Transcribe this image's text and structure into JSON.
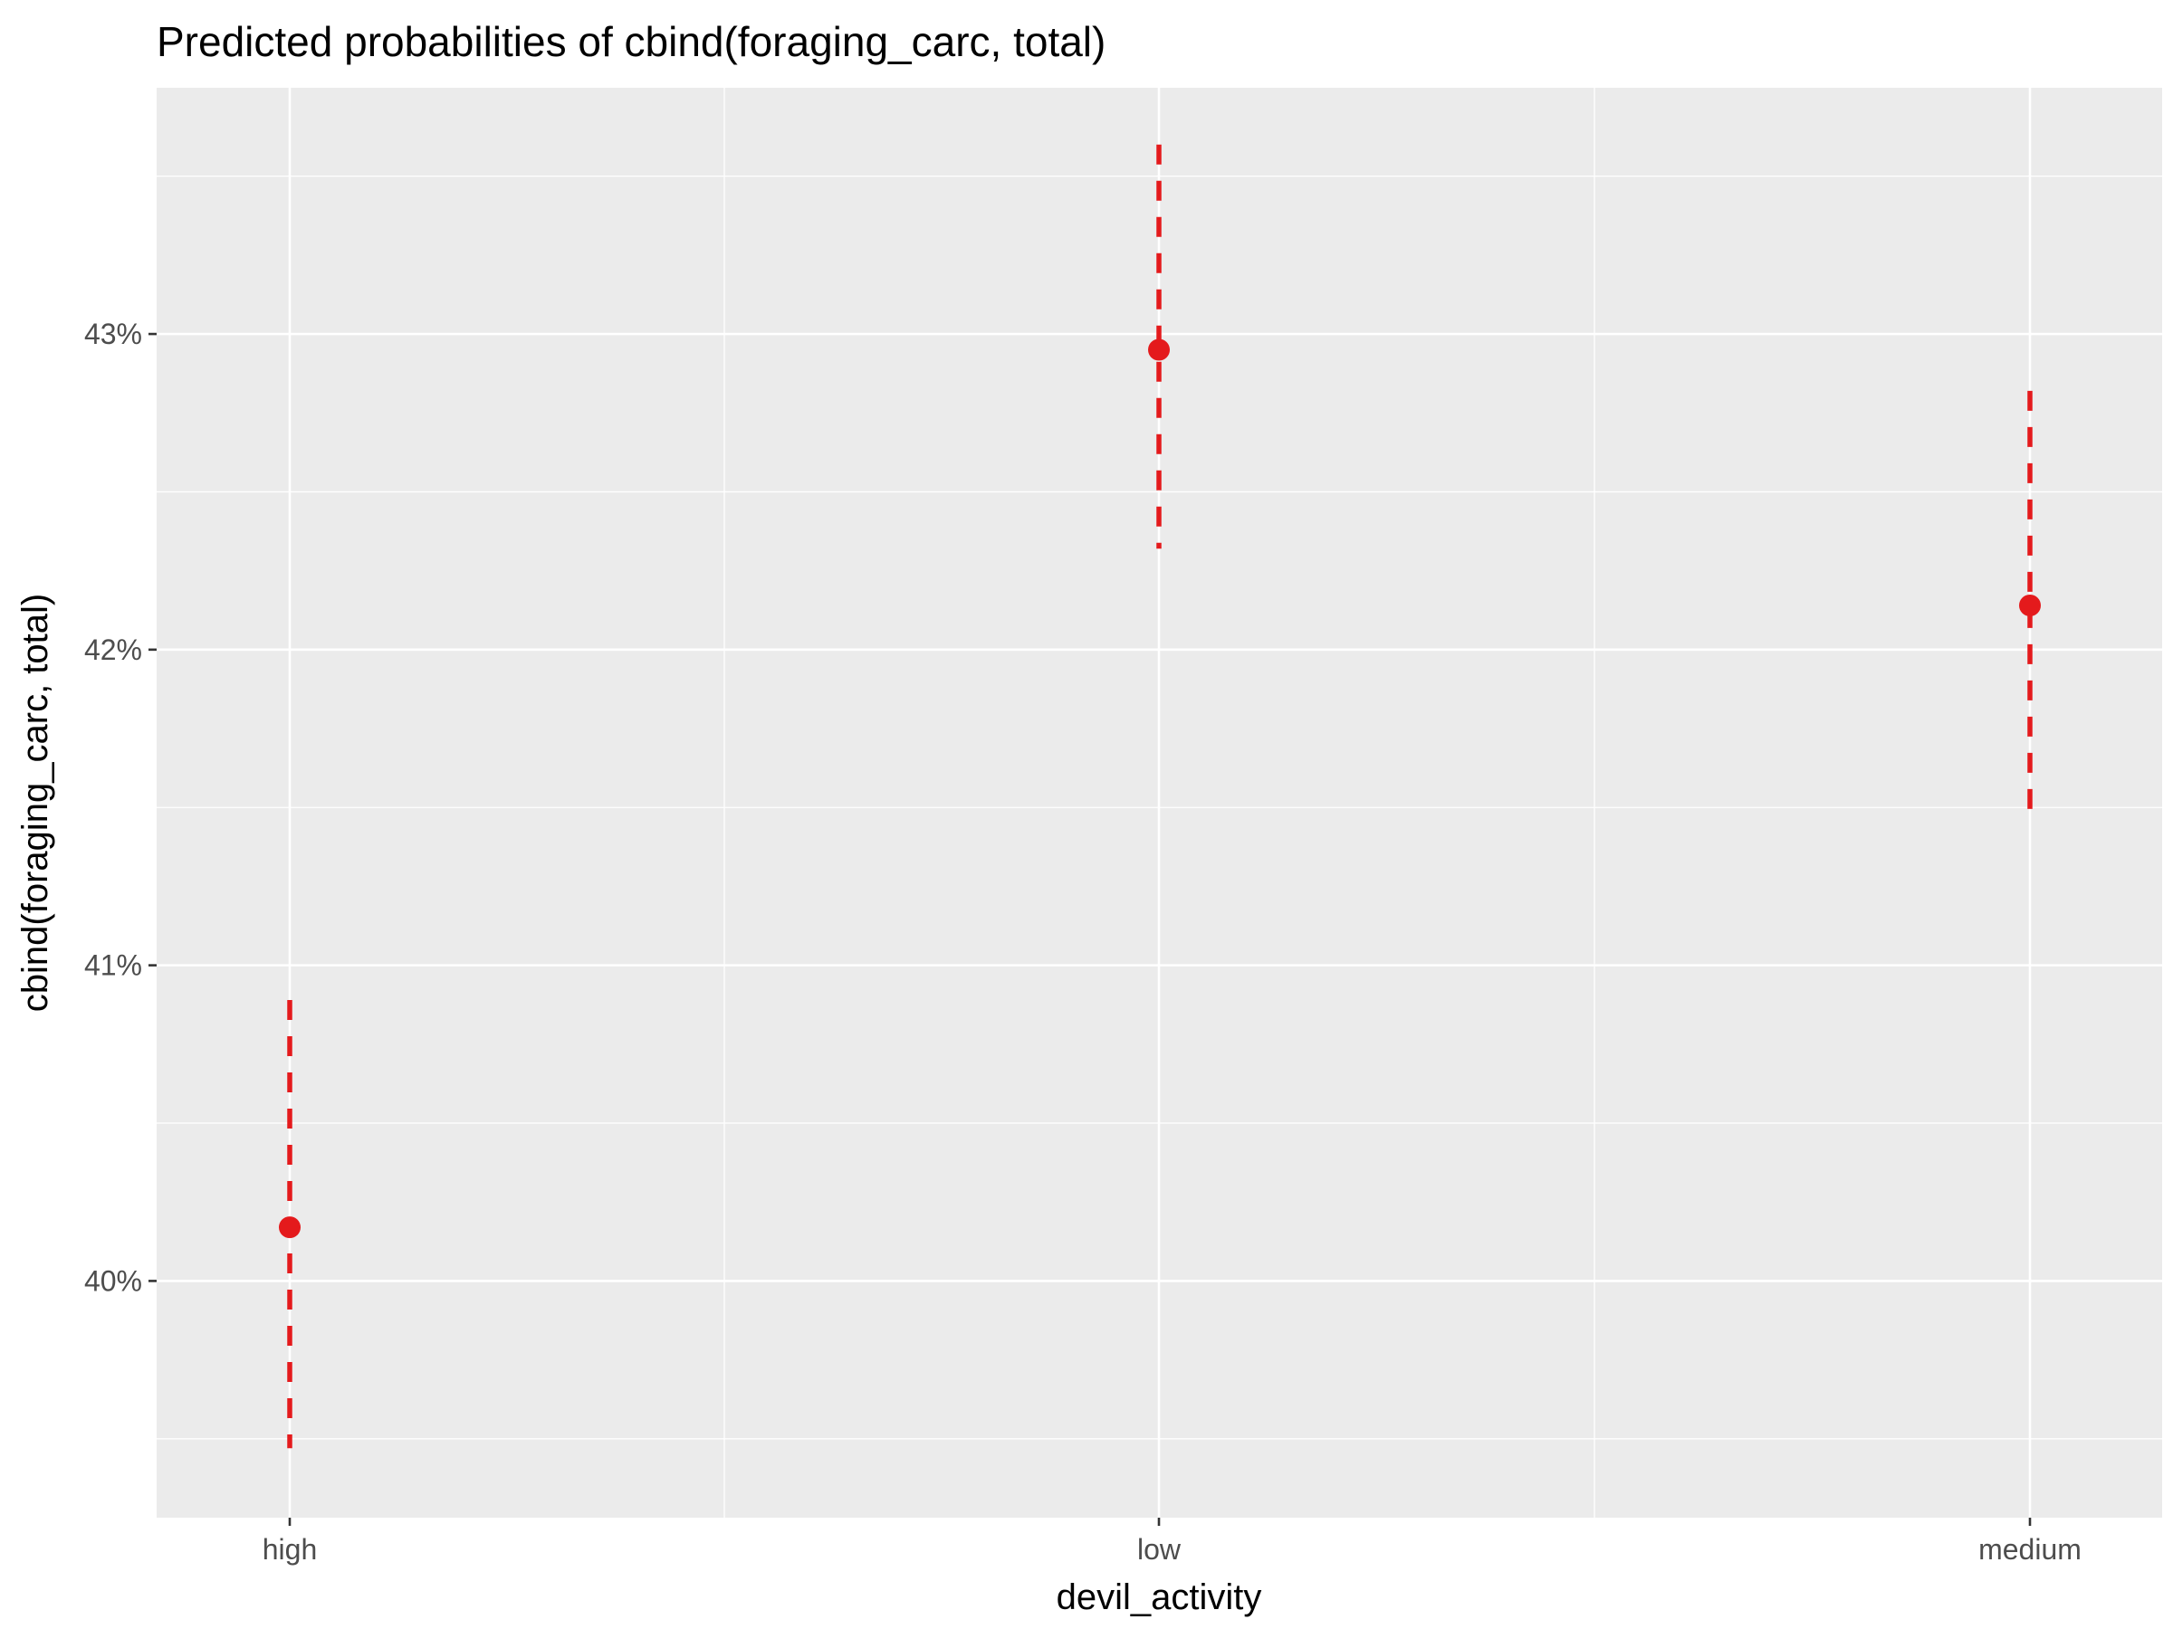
{
  "chart_data": {
    "type": "scatter",
    "title": "Predicted probabilities of cbind(foraging_carc, total)",
    "xlabel": "devil_activity",
    "ylabel": "cbind(foraging_carc, total)",
    "categories": [
      "high",
      "low",
      "medium"
    ],
    "series": [
      {
        "values": [
          40.17,
          42.95,
          42.14
        ],
        "ci_low": [
          39.47,
          42.32,
          41.49
        ],
        "ci_high": [
          40.89,
          43.6,
          42.82
        ]
      }
    ],
    "y_ticks": [
      40,
      41,
      42,
      43
    ],
    "y_tick_labels": [
      "40%",
      "41%",
      "42%",
      "43%"
    ],
    "ylim": [
      39.25,
      43.78
    ],
    "grid": true,
    "legend": "none",
    "colors": {
      "point": "#e41a1c",
      "panel": "#ebebeb",
      "grid": "#ffffff",
      "tick": "#333333"
    }
  }
}
